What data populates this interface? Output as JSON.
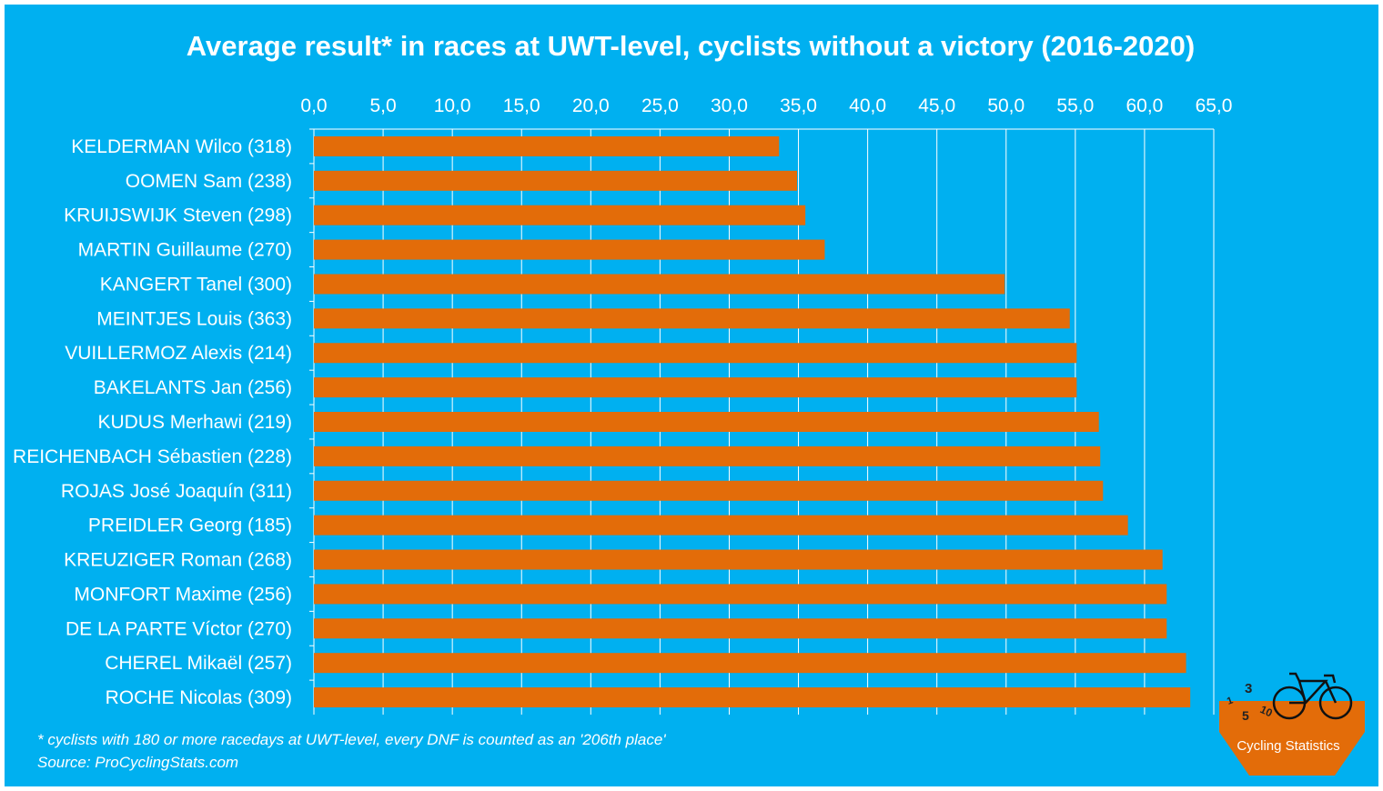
{
  "chart_data": {
    "type": "bar",
    "orientation": "horizontal",
    "title": "Average result* in races at UWT-level, cyclists without a victory (2016-2020)",
    "categories": [
      "KELDERMAN Wilco (318)",
      "OOMEN Sam (238)",
      "KRUIJSWIJK Steven (298)",
      "MARTIN Guillaume (270)",
      "KANGERT Tanel (300)",
      "MEINTJES Louis (363)",
      "VUILLERMOZ Alexis (214)",
      "BAKELANTS Jan (256)",
      "KUDUS Merhawi (219)",
      "REICHENBACH Sébastien (228)",
      "ROJAS José Joaquín (311)",
      "PREIDLER Georg (185)",
      "KREUZIGER Roman (268)",
      "MONFORT Maxime (256)",
      "DE LA PARTE Víctor (270)",
      "CHEREL Mikaël (257)",
      "ROCHE Nicolas (309)"
    ],
    "values": [
      33.6,
      34.9,
      35.5,
      36.9,
      49.9,
      54.6,
      55.1,
      55.1,
      56.7,
      56.8,
      57.0,
      58.8,
      61.3,
      61.6,
      61.6,
      63.0,
      63.3
    ],
    "xlim": [
      0,
      65
    ],
    "xticks": [
      "0,0",
      "5,0",
      "10,0",
      "15,0",
      "20,0",
      "25,0",
      "30,0",
      "35,0",
      "40,0",
      "45,0",
      "50,0",
      "55,0",
      "60,0",
      "65,0"
    ],
    "x_axis_position": "top",
    "grid": true,
    "bar_color": "#E36C09",
    "background_color": "#00B0F0",
    "footnote": "* cyclists with 180 or more racedays at UWT-level, every DNF is counted as an '206th place'",
    "source": "Source: ProCyclingStats.com"
  },
  "logo": {
    "text": "Cycling Statistics",
    "numbers": [
      "1",
      "3",
      "5",
      "10"
    ],
    "color": "#E36C09"
  }
}
